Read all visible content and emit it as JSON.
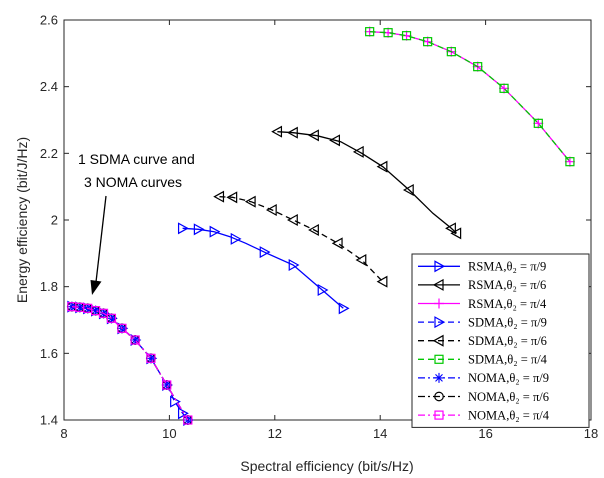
{
  "chart_data": {
    "type": "line",
    "xlabel": "Spectral efficiency (bit/s/Hz)",
    "ylabel": "Energy efficiency (bit/J/Hz)",
    "xlim": [
      8,
      18
    ],
    "ylim": [
      1.4,
      2.6
    ],
    "xticks": [
      "8",
      "10",
      "12",
      "14",
      "16",
      "18"
    ],
    "yticks": [
      "1.4",
      "1.6",
      "1.8",
      "2",
      "2.2",
      "2.4",
      "2.6"
    ],
    "grid": "off",
    "legend_position": "lower-right",
    "annotation": [
      "1 SDMA curve and",
      "3 NOMA curves"
    ],
    "series": [
      {
        "name": "RSMA,θ₂ = π/9",
        "color": "#0000ff",
        "dash": "solid",
        "marker": "triangle-right",
        "x": [
          10.25,
          10.55,
          10.85,
          11.15,
          11.45,
          11.85,
          12.35,
          12.9,
          13.3
        ],
        "y": [
          1.975,
          1.972,
          1.965,
          1.95,
          1.93,
          1.9,
          1.865,
          1.79,
          1.735
        ],
        "marker_x": [
          10.25,
          10.55,
          10.85,
          11.25,
          11.8,
          12.35,
          12.9,
          13.3
        ]
      },
      {
        "name": "RSMA,θ₂ = π/6",
        "color": "#000000",
        "dash": "solid",
        "marker": "triangle-left",
        "x": [
          12.05,
          12.35,
          12.8,
          13.25,
          13.65,
          14.05,
          14.55,
          15.0,
          15.35,
          15.45
        ],
        "y": [
          2.265,
          2.262,
          2.253,
          2.235,
          2.2,
          2.16,
          2.09,
          2.02,
          1.975,
          1.96
        ],
        "marker_x": [
          12.05,
          12.35,
          12.75,
          13.15,
          13.6,
          14.05,
          14.55,
          15.35,
          15.45
        ]
      },
      {
        "name": "RSMA,θ₂ = π/4",
        "color": "#ff00ff",
        "dash": "solid",
        "marker": "plus",
        "x": [
          13.8,
          14.15,
          14.5,
          14.9,
          15.35,
          15.85,
          16.35,
          17.0,
          17.6
        ],
        "y": [
          2.565,
          2.562,
          2.553,
          2.535,
          2.505,
          2.46,
          2.395,
          2.29,
          2.175
        ],
        "marker_x": [
          13.8,
          14.15,
          14.5,
          14.9,
          15.35,
          15.85,
          16.35,
          17.0,
          17.6
        ]
      },
      {
        "name": "SDMA,θ₂ = π/9",
        "color": "#0000ff",
        "dash": "dashed",
        "marker": "triangle-right",
        "x": [
          8.15,
          8.3,
          8.45,
          8.6,
          8.75,
          8.9,
          9.1,
          9.35,
          9.65,
          9.95,
          10.1,
          10.25,
          10.35
        ],
        "y": [
          1.74,
          1.738,
          1.735,
          1.728,
          1.72,
          1.705,
          1.675,
          1.64,
          1.585,
          1.505,
          1.455,
          1.42,
          1.4
        ],
        "marker_x": [
          8.15,
          8.3,
          8.45,
          8.6,
          8.75,
          8.9,
          9.1,
          9.35,
          9.65,
          9.95,
          10.1,
          10.25,
          10.35
        ]
      },
      {
        "name": "SDMA,θ₂ = π/6",
        "color": "#000000",
        "dash": "dashed",
        "marker": "triangle-left",
        "x": [
          10.95,
          11.2,
          11.55,
          11.95,
          12.35,
          12.75,
          13.2,
          13.65,
          14.05
        ],
        "y": [
          2.07,
          2.068,
          2.055,
          2.03,
          2.0,
          1.97,
          1.93,
          1.88,
          1.815
        ],
        "marker_x": [
          10.95,
          11.2,
          11.55,
          11.95,
          12.35,
          12.75,
          13.2,
          13.65,
          14.05
        ]
      },
      {
        "name": "SDMA,θ₂ = π/4",
        "color": "#00c800",
        "dash": "dashed",
        "marker": "square",
        "x": [
          13.8,
          14.15,
          14.5,
          14.9,
          15.35,
          15.85,
          16.35,
          17.0,
          17.6
        ],
        "y": [
          2.565,
          2.562,
          2.553,
          2.535,
          2.505,
          2.46,
          2.395,
          2.29,
          2.175
        ],
        "marker_x": [
          13.8,
          14.15,
          14.5,
          14.9,
          15.35,
          15.85,
          16.35,
          17.0,
          17.6
        ]
      },
      {
        "name": "NOMA,θ₂ = π/9",
        "color": "#0000ff",
        "dash": "dashdot",
        "marker": "asterisk",
        "x": [
          8.15,
          8.3,
          8.45,
          8.6,
          8.75,
          8.9,
          9.1,
          9.35,
          9.65,
          9.95,
          10.35
        ],
        "y": [
          1.74,
          1.738,
          1.735,
          1.728,
          1.72,
          1.705,
          1.675,
          1.64,
          1.585,
          1.505,
          1.4
        ],
        "marker_x": [
          8.15,
          8.3,
          8.45,
          8.6,
          8.75,
          8.9,
          9.1,
          9.35,
          9.65,
          9.95,
          10.35
        ]
      },
      {
        "name": "NOMA,θ₂ = π/6",
        "color": "#000000",
        "dash": "dashdot",
        "marker": "circle",
        "x": [
          8.15,
          8.3,
          8.45,
          8.6,
          8.75,
          8.9,
          9.1,
          9.35,
          9.65,
          9.95,
          10.35
        ],
        "y": [
          1.74,
          1.738,
          1.735,
          1.728,
          1.72,
          1.705,
          1.675,
          1.64,
          1.585,
          1.505,
          1.4
        ],
        "marker_x": [
          8.15,
          8.3,
          8.45,
          8.6,
          8.75,
          8.9,
          9.1,
          9.35,
          9.65,
          9.95,
          10.35
        ]
      },
      {
        "name": "NOMA,θ₂ = π/4",
        "color": "#ff00ff",
        "dash": "dashdot",
        "marker": "square",
        "x": [
          8.15,
          8.3,
          8.45,
          8.6,
          8.75,
          8.9,
          9.1,
          9.35,
          9.65,
          9.95,
          10.35
        ],
        "y": [
          1.74,
          1.738,
          1.735,
          1.728,
          1.72,
          1.705,
          1.675,
          1.64,
          1.585,
          1.505,
          1.4
        ],
        "marker_x": [
          8.15,
          8.3,
          8.45,
          8.6,
          8.75,
          8.9,
          9.1,
          9.35,
          9.65,
          9.95,
          10.35
        ]
      }
    ]
  }
}
